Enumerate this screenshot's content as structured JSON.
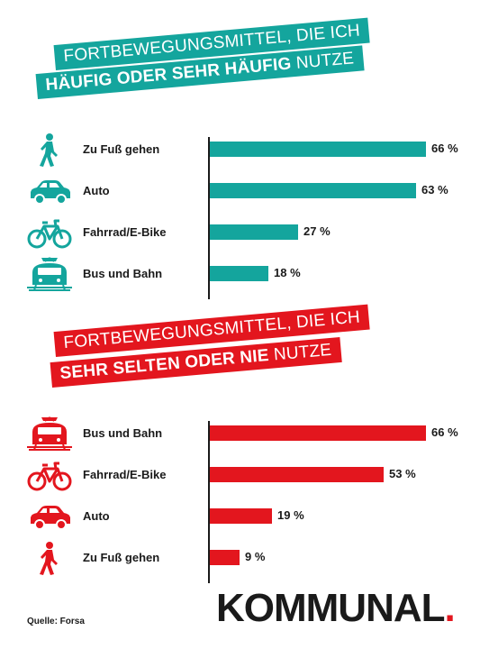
{
  "charts": [
    {
      "banner_line1": "FORTBEWEGUNGSMITTEL, DIE ICH",
      "banner_line2_bold": "HÄUFIG ODER SEHR HÄUFIG",
      "banner_line2_rest": " NUTZE",
      "color": "#14a59d"
    },
    {
      "banner_line1": "FORTBEWEGUNGSMITTEL, DIE ICH",
      "banner_line2_bold": "SEHR SELTEN ODER NIE",
      "banner_line2_rest": " NUTZE",
      "color": "#e3161e"
    }
  ],
  "chart_data": [
    {
      "type": "bar",
      "orientation": "horizontal",
      "categories": [
        "Zu Fuß gehen",
        "Auto",
        "Fahrrad/E-Bike",
        "Bus und Bahn"
      ],
      "values": [
        66,
        63,
        27,
        18
      ],
      "value_labels": [
        "66 %",
        "63 %",
        "27 %",
        "18 %"
      ],
      "icons": [
        "walking-icon",
        "car-icon",
        "bicycle-icon",
        "train-icon"
      ],
      "xlim": [
        0,
        66
      ]
    },
    {
      "type": "bar",
      "orientation": "horizontal",
      "categories": [
        "Bus und Bahn",
        "Fahrrad/E-Bike",
        "Auto",
        "Zu Fuß gehen"
      ],
      "values": [
        66,
        53,
        19,
        9
      ],
      "value_labels": [
        "66 %",
        "53 %",
        "19 %",
        "9 %"
      ],
      "icons": [
        "train-icon",
        "bicycle-icon",
        "car-icon",
        "walking-icon"
      ],
      "xlim": [
        0,
        66
      ]
    }
  ],
  "footer": {
    "source": "Quelle: Forsa",
    "logo": "KOMMUNAL",
    "logo_dot": "."
  }
}
